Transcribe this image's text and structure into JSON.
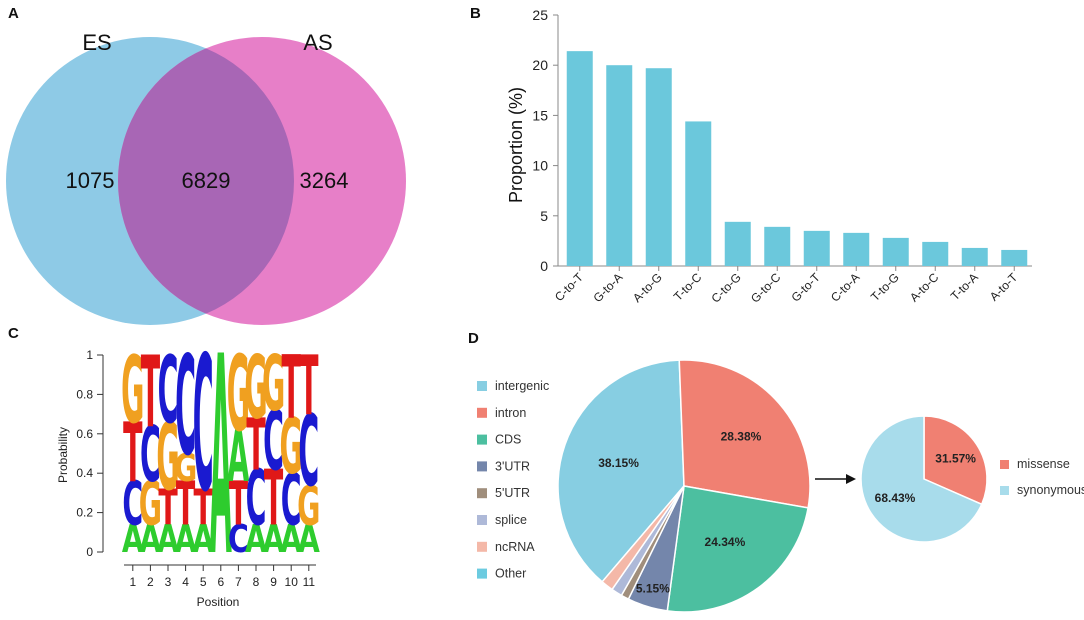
{
  "panels": {
    "A": "A",
    "B": "B",
    "C": "C",
    "D": "D"
  },
  "venn": {
    "left_label": "ES",
    "right_label": "AS",
    "left_only": "1075",
    "overlap": "6829",
    "right_only": "3264",
    "colors": {
      "left": "#8ecae6",
      "right": "#e77fc8",
      "overlap": "#a866b5"
    }
  },
  "chart_data": [
    {
      "type": "bar",
      "title": "",
      "xlabel": "",
      "ylabel": "Proportion (%)",
      "categories": [
        "C-to-T",
        "G-to-A",
        "A-to-G",
        "T-to-C",
        "C-to-G",
        "G-to-C",
        "G-to-T",
        "C-to-A",
        "T-to-G",
        "A-to-C",
        "T-to-A",
        "A-to-T"
      ],
      "values": [
        21.4,
        20.0,
        19.7,
        14.4,
        4.4,
        3.9,
        3.5,
        3.3,
        2.8,
        2.4,
        1.8,
        1.6
      ],
      "ylim": [
        0,
        25
      ],
      "yticks": [
        "0",
        "5",
        "10",
        "15",
        "20",
        "25"
      ],
      "bar_color": "#6bc8dc"
    },
    {
      "type": "pie",
      "title": "",
      "legend": [
        "intergenic",
        "intron",
        "CDS",
        "3'UTR",
        "5'UTR",
        "splice",
        "ncRNA",
        "Other"
      ],
      "values": [
        38.15,
        28.38,
        24.34,
        5.15,
        1.0,
        1.4,
        1.58,
        0.0
      ],
      "labels": [
        "38.15%",
        "28.38%",
        "24.34%",
        "5.15%",
        "",
        "",
        "",
        ""
      ],
      "colors": [
        "#87cee2",
        "#f08072",
        "#4cbfa0",
        "#7486ab",
        "#a08e7c",
        "#aeb9d8",
        "#f4b8a8",
        "#6ccbe0"
      ]
    },
    {
      "type": "pie",
      "title": "",
      "legend": [
        "missense",
        "synonymous"
      ],
      "values": [
        31.57,
        68.43
      ],
      "labels": [
        "31.57%",
        "68.43%"
      ],
      "colors": [
        "#f08072",
        "#a8dceb"
      ]
    }
  ],
  "logo": {
    "ylabel": "Probability",
    "xlabel": "Position",
    "yticks": [
      "0",
      "0.2",
      "0.4",
      "0.6",
      "0.8",
      "1"
    ],
    "positions": [
      "1",
      "2",
      "3",
      "4",
      "5",
      "6",
      "7",
      "8",
      "9",
      "10",
      "11"
    ],
    "columns": [
      [
        [
          "A",
          0.14
        ],
        [
          "C",
          0.22
        ],
        [
          "T",
          0.3
        ],
        [
          "G",
          0.34
        ]
      ],
      [
        [
          "A",
          0.14
        ],
        [
          "G",
          0.22
        ],
        [
          "C",
          0.28
        ],
        [
          "T",
          0.36
        ]
      ],
      [
        [
          "A",
          0.14
        ],
        [
          "T",
          0.18
        ],
        [
          "G",
          0.34
        ],
        [
          "C",
          0.34
        ]
      ],
      [
        [
          "A",
          0.14
        ],
        [
          "T",
          0.22
        ],
        [
          "G",
          0.14
        ],
        [
          "C",
          0.5
        ]
      ],
      [
        [
          "A",
          0.14
        ],
        [
          "T",
          0.18
        ],
        [
          "C",
          0.68
        ]
      ],
      [
        [
          "A",
          1.0
        ]
      ],
      [
        [
          "C",
          0.14
        ],
        [
          "T",
          0.22
        ],
        [
          "A",
          0.26
        ],
        [
          "G",
          0.38
        ]
      ],
      [
        [
          "A",
          0.14
        ],
        [
          "C",
          0.28
        ],
        [
          "T",
          0.26
        ],
        [
          "G",
          0.32
        ]
      ],
      [
        [
          "A",
          0.14
        ],
        [
          "T",
          0.28
        ],
        [
          "C",
          0.3
        ],
        [
          "G",
          0.28
        ]
      ],
      [
        [
          "A",
          0.14
        ],
        [
          "C",
          0.26
        ],
        [
          "G",
          0.28
        ],
        [
          "T",
          0.32
        ]
      ],
      [
        [
          "A",
          0.14
        ],
        [
          "G",
          0.2
        ],
        [
          "C",
          0.36
        ],
        [
          "T",
          0.3
        ]
      ]
    ],
    "colors": {
      "A": "#2ecc2e",
      "C": "#1a1ad0",
      "G": "#f0a020",
      "T": "#e01818"
    }
  }
}
